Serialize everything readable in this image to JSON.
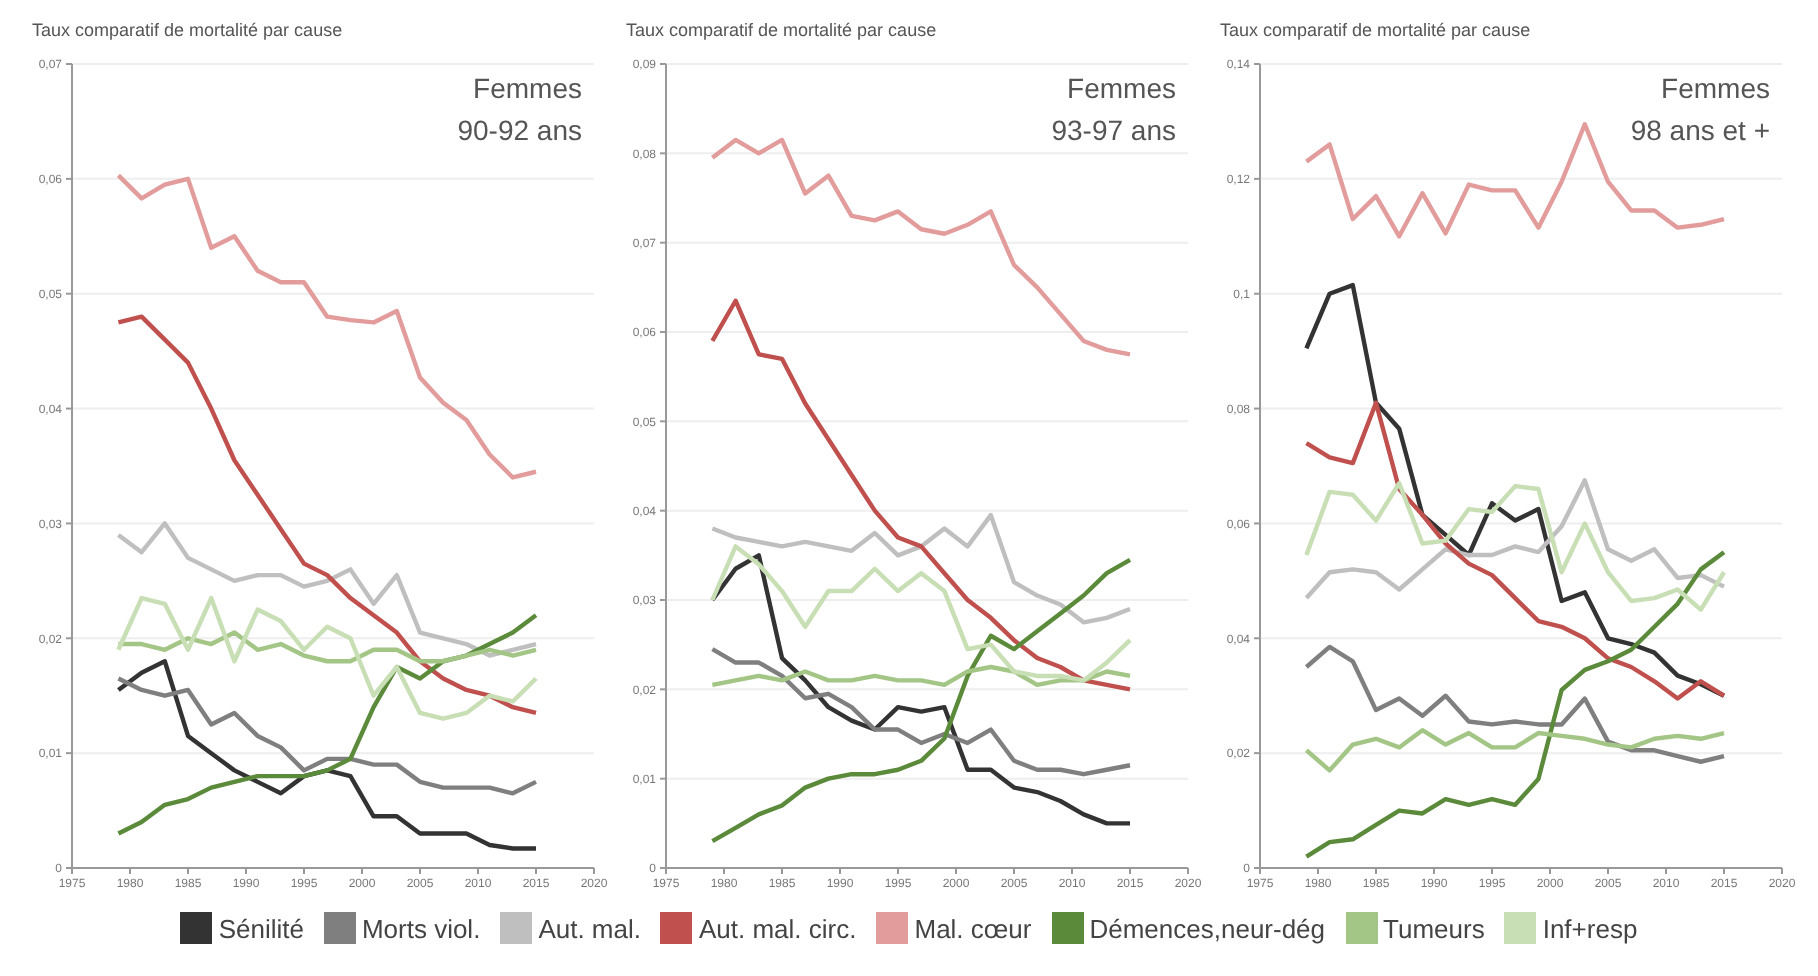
{
  "chart_data": [
    {
      "type": "line",
      "title": "Femmes 90-92 ans",
      "ylabel": "Taux comparatif de mortalité par cause",
      "x": [
        1979,
        1981,
        1983,
        1985,
        1987,
        1989,
        1991,
        1993,
        1995,
        1997,
        1999,
        2001,
        2003,
        2005,
        2007,
        2009,
        2011,
        2013,
        2015
      ],
      "xlim": [
        1975,
        2020
      ],
      "xticks": [
        1975,
        1980,
        1985,
        1990,
        1995,
        2000,
        2005,
        2010,
        2015,
        2020
      ],
      "ylim": [
        0,
        0.07
      ],
      "yticks": [
        {
          "value": 0,
          "label": "0"
        },
        {
          "value": 0.01,
          "label": "0,01"
        },
        {
          "value": 0.02,
          "label": "0,02"
        },
        {
          "value": 0.03,
          "label": "0,03"
        },
        {
          "value": 0.04,
          "label": "0,04"
        },
        {
          "value": 0.05,
          "label": "0,05"
        },
        {
          "value": 0.06,
          "label": "0,06"
        },
        {
          "value": 0.07,
          "label": "0,07"
        }
      ],
      "grid": "y",
      "marker": "none",
      "line_style": "solid",
      "legend": "bottom",
      "series": [
        {
          "name": "Sénilité",
          "color": "#333333",
          "values": [
            0.0155,
            0.017,
            0.018,
            0.0115,
            0.01,
            0.0085,
            0.0075,
            0.0065,
            0.008,
            0.0085,
            0.008,
            0.0045,
            0.0045,
            0.003,
            0.003,
            0.003,
            0.002,
            0.0017,
            0.0017
          ]
        },
        {
          "name": "Morts viol.",
          "color": "#7f7f7f",
          "values": [
            0.0165,
            0.0155,
            0.015,
            0.0155,
            0.0125,
            0.0135,
            0.0115,
            0.0105,
            0.0085,
            0.0095,
            0.0095,
            0.009,
            0.009,
            0.0075,
            0.007,
            0.007,
            0.007,
            0.0065,
            0.0075
          ]
        },
        {
          "name": "Aut. mal.",
          "color": "#bfbfbf",
          "values": [
            0.029,
            0.0275,
            0.03,
            0.027,
            0.026,
            0.025,
            0.0255,
            0.0255,
            0.0245,
            0.025,
            0.026,
            0.023,
            0.0255,
            0.0205,
            0.02,
            0.0195,
            0.0185,
            0.019,
            0.0195
          ]
        },
        {
          "name": "Aut. mal. circ.",
          "color": "#c0504d",
          "values": [
            0.0475,
            0.048,
            0.046,
            0.044,
            0.04,
            0.0355,
            0.0325,
            0.0295,
            0.0265,
            0.0255,
            0.0235,
            0.022,
            0.0205,
            0.018,
            0.0165,
            0.0155,
            0.015,
            0.014,
            0.0135
          ]
        },
        {
          "name": "Mal. cœur",
          "color": "#e19c9b",
          "values": [
            0.0603,
            0.0583,
            0.0595,
            0.06,
            0.054,
            0.055,
            0.052,
            0.051,
            0.051,
            0.048,
            0.0477,
            0.0475,
            0.0485,
            0.0427,
            0.0405,
            0.039,
            0.036,
            0.034,
            0.0345
          ]
        },
        {
          "name": "Démences,neur-dég",
          "color": "#5a8a3a",
          "values": [
            0.003,
            0.004,
            0.0055,
            0.006,
            0.007,
            0.0075,
            0.008,
            0.008,
            0.008,
            0.0085,
            0.0095,
            0.014,
            0.0175,
            0.0165,
            0.018,
            0.0185,
            0.0195,
            0.0205,
            0.022
          ]
        },
        {
          "name": "Tumeurs",
          "color": "#a3c585",
          "values": [
            0.0195,
            0.0195,
            0.019,
            0.02,
            0.0195,
            0.0205,
            0.019,
            0.0195,
            0.0185,
            0.018,
            0.018,
            0.019,
            0.019,
            0.018,
            0.018,
            0.0185,
            0.019,
            0.0185,
            0.019
          ]
        },
        {
          "name": "Inf+resp",
          "color": "#c8deb4",
          "values": [
            0.019,
            0.0235,
            0.023,
            0.019,
            0.0235,
            0.018,
            0.0225,
            0.0215,
            0.019,
            0.021,
            0.02,
            0.015,
            0.0175,
            0.0135,
            0.013,
            0.0135,
            0.015,
            0.0145,
            0.0165
          ]
        }
      ]
    },
    {
      "type": "line",
      "title": "Femmes 93-97 ans",
      "ylabel": "Taux comparatif de mortalité par cause",
      "x": [
        1979,
        1981,
        1983,
        1985,
        1987,
        1989,
        1991,
        1993,
        1995,
        1997,
        1999,
        2001,
        2003,
        2005,
        2007,
        2009,
        2011,
        2013,
        2015
      ],
      "xlim": [
        1975,
        2020
      ],
      "xticks": [
        1975,
        1980,
        1985,
        1990,
        1995,
        2000,
        2005,
        2010,
        2015,
        2020
      ],
      "ylim": [
        0,
        0.09
      ],
      "yticks": [
        {
          "value": 0,
          "label": "0"
        },
        {
          "value": 0.01,
          "label": "0,01"
        },
        {
          "value": 0.02,
          "label": "0,02"
        },
        {
          "value": 0.03,
          "label": "0,03"
        },
        {
          "value": 0.04,
          "label": "0,04"
        },
        {
          "value": 0.05,
          "label": "0,05"
        },
        {
          "value": 0.06,
          "label": "0,06"
        },
        {
          "value": 0.07,
          "label": "0,07"
        },
        {
          "value": 0.08,
          "label": "0,08"
        },
        {
          "value": 0.09,
          "label": "0,09"
        }
      ],
      "grid": "y",
      "marker": "none",
      "line_style": "solid",
      "series": [
        {
          "name": "Sénilité",
          "color": "#333333",
          "values": [
            0.03,
            0.0335,
            0.035,
            0.0235,
            0.021,
            0.018,
            0.0165,
            0.0155,
            0.018,
            0.0175,
            0.018,
            0.011,
            0.011,
            0.009,
            0.0085,
            0.0075,
            0.006,
            0.005,
            0.005
          ]
        },
        {
          "name": "Morts viol.",
          "color": "#7f7f7f",
          "values": [
            0.0245,
            0.023,
            0.023,
            0.0215,
            0.019,
            0.0195,
            0.018,
            0.0155,
            0.0155,
            0.014,
            0.015,
            0.014,
            0.0155,
            0.012,
            0.011,
            0.011,
            0.0105,
            0.011,
            0.0115
          ]
        },
        {
          "name": "Aut. mal.",
          "color": "#bfbfbf",
          "values": [
            0.038,
            0.037,
            0.0365,
            0.036,
            0.0365,
            0.036,
            0.0355,
            0.0375,
            0.035,
            0.036,
            0.038,
            0.036,
            0.0395,
            0.032,
            0.0305,
            0.0295,
            0.0275,
            0.028,
            0.029
          ]
        },
        {
          "name": "Aut. mal. circ.",
          "color": "#c0504d",
          "values": [
            0.059,
            0.0635,
            0.0575,
            0.057,
            0.052,
            0.048,
            0.044,
            0.04,
            0.037,
            0.036,
            0.033,
            0.03,
            0.028,
            0.0255,
            0.0235,
            0.0225,
            0.021,
            0.0205,
            0.02
          ]
        },
        {
          "name": "Mal. cœur",
          "color": "#e19c9b",
          "values": [
            0.0795,
            0.0815,
            0.08,
            0.0815,
            0.0755,
            0.0775,
            0.073,
            0.0725,
            0.0735,
            0.0715,
            0.071,
            0.072,
            0.0735,
            0.0675,
            0.065,
            0.062,
            0.059,
            0.058,
            0.0575
          ]
        },
        {
          "name": "Démences,neur-dég",
          "color": "#5a8a3a",
          "values": [
            0.003,
            0.0045,
            0.006,
            0.007,
            0.009,
            0.01,
            0.0105,
            0.0105,
            0.011,
            0.012,
            0.0145,
            0.0215,
            0.026,
            0.0245,
            0.0265,
            0.0285,
            0.0305,
            0.033,
            0.0345
          ]
        },
        {
          "name": "Tumeurs",
          "color": "#a3c585",
          "values": [
            0.0205,
            0.021,
            0.0215,
            0.021,
            0.022,
            0.021,
            0.021,
            0.0215,
            0.021,
            0.021,
            0.0205,
            0.022,
            0.0225,
            0.022,
            0.0205,
            0.021,
            0.021,
            0.022,
            0.0215
          ]
        },
        {
          "name": "Inf+resp",
          "color": "#c8deb4",
          "values": [
            0.03,
            0.036,
            0.034,
            0.031,
            0.027,
            0.031,
            0.031,
            0.0335,
            0.031,
            0.033,
            0.031,
            0.0245,
            0.025,
            0.022,
            0.0215,
            0.0215,
            0.021,
            0.023,
            0.0255
          ]
        }
      ]
    },
    {
      "type": "line",
      "title": "Femmes 98 ans et +",
      "ylabel": "Taux comparatif de mortalité par cause",
      "x": [
        1979,
        1981,
        1983,
        1985,
        1987,
        1989,
        1991,
        1993,
        1995,
        1997,
        1999,
        2001,
        2003,
        2005,
        2007,
        2009,
        2011,
        2013,
        2015
      ],
      "xlim": [
        1975,
        2020
      ],
      "xticks": [
        1975,
        1980,
        1985,
        1990,
        1995,
        2000,
        2005,
        2010,
        2015,
        2020
      ],
      "ylim": [
        0,
        0.14
      ],
      "yticks": [
        {
          "value": 0,
          "label": "0"
        },
        {
          "value": 0.02,
          "label": "0,02"
        },
        {
          "value": 0.04,
          "label": "0,04"
        },
        {
          "value": 0.06,
          "label": "0,06"
        },
        {
          "value": 0.08,
          "label": "0,08"
        },
        {
          "value": 0.1,
          "label": "0,1"
        },
        {
          "value": 0.12,
          "label": "0,12"
        },
        {
          "value": 0.14,
          "label": "0,14"
        }
      ],
      "grid": "y",
      "marker": "none",
      "line_style": "solid",
      "series": [
        {
          "name": "Sénilité",
          "color": "#333333",
          "values": [
            0.0905,
            0.1,
            0.1015,
            0.081,
            0.0765,
            0.0615,
            0.058,
            0.0545,
            0.0635,
            0.0605,
            0.0625,
            0.0465,
            0.048,
            0.04,
            0.039,
            0.0375,
            0.0335,
            0.032,
            0.03
          ]
        },
        {
          "name": "Morts viol.",
          "color": "#7f7f7f",
          "values": [
            0.035,
            0.0385,
            0.036,
            0.0275,
            0.0295,
            0.0265,
            0.03,
            0.0255,
            0.025,
            0.0255,
            0.025,
            0.025,
            0.0295,
            0.022,
            0.0205,
            0.0205,
            0.0195,
            0.0185,
            0.0195
          ]
        },
        {
          "name": "Aut. mal.",
          "color": "#bfbfbf",
          "values": [
            0.047,
            0.0515,
            0.052,
            0.0515,
            0.0485,
            0.052,
            0.0555,
            0.0545,
            0.0545,
            0.056,
            0.055,
            0.0595,
            0.0675,
            0.0555,
            0.0535,
            0.0555,
            0.0505,
            0.051,
            0.049
          ]
        },
        {
          "name": "Aut. mal. circ.",
          "color": "#c0504d",
          "values": [
            0.074,
            0.0715,
            0.0705,
            0.081,
            0.066,
            0.0615,
            0.0565,
            0.053,
            0.051,
            0.047,
            0.043,
            0.042,
            0.04,
            0.0365,
            0.035,
            0.0325,
            0.0295,
            0.0325,
            0.03
          ]
        },
        {
          "name": "Mal. cœur",
          "color": "#e19c9b",
          "values": [
            0.123,
            0.126,
            0.113,
            0.117,
            0.11,
            0.1175,
            0.1105,
            0.119,
            0.118,
            0.118,
            0.1115,
            0.1195,
            0.1295,
            0.1195,
            0.1145,
            0.1145,
            0.1115,
            0.112,
            0.113
          ]
        },
        {
          "name": "Démences,neur-dég",
          "color": "#5a8a3a",
          "values": [
            0.002,
            0.0045,
            0.005,
            0.0075,
            0.01,
            0.0095,
            0.012,
            0.011,
            0.012,
            0.011,
            0.0155,
            0.031,
            0.0345,
            0.036,
            0.038,
            0.042,
            0.046,
            0.052,
            0.055
          ]
        },
        {
          "name": "Tumeurs",
          "color": "#a3c585",
          "values": [
            0.0205,
            0.017,
            0.0215,
            0.0225,
            0.021,
            0.024,
            0.0215,
            0.0235,
            0.021,
            0.021,
            0.0235,
            0.023,
            0.0225,
            0.0215,
            0.021,
            0.0225,
            0.023,
            0.0225,
            0.0235
          ]
        },
        {
          "name": "Inf+resp",
          "color": "#c8deb4",
          "values": [
            0.0545,
            0.0655,
            0.065,
            0.0605,
            0.067,
            0.0565,
            0.057,
            0.0625,
            0.062,
            0.0665,
            0.066,
            0.0515,
            0.06,
            0.0515,
            0.0465,
            0.047,
            0.0485,
            0.045,
            0.0515
          ]
        }
      ]
    }
  ]
}
